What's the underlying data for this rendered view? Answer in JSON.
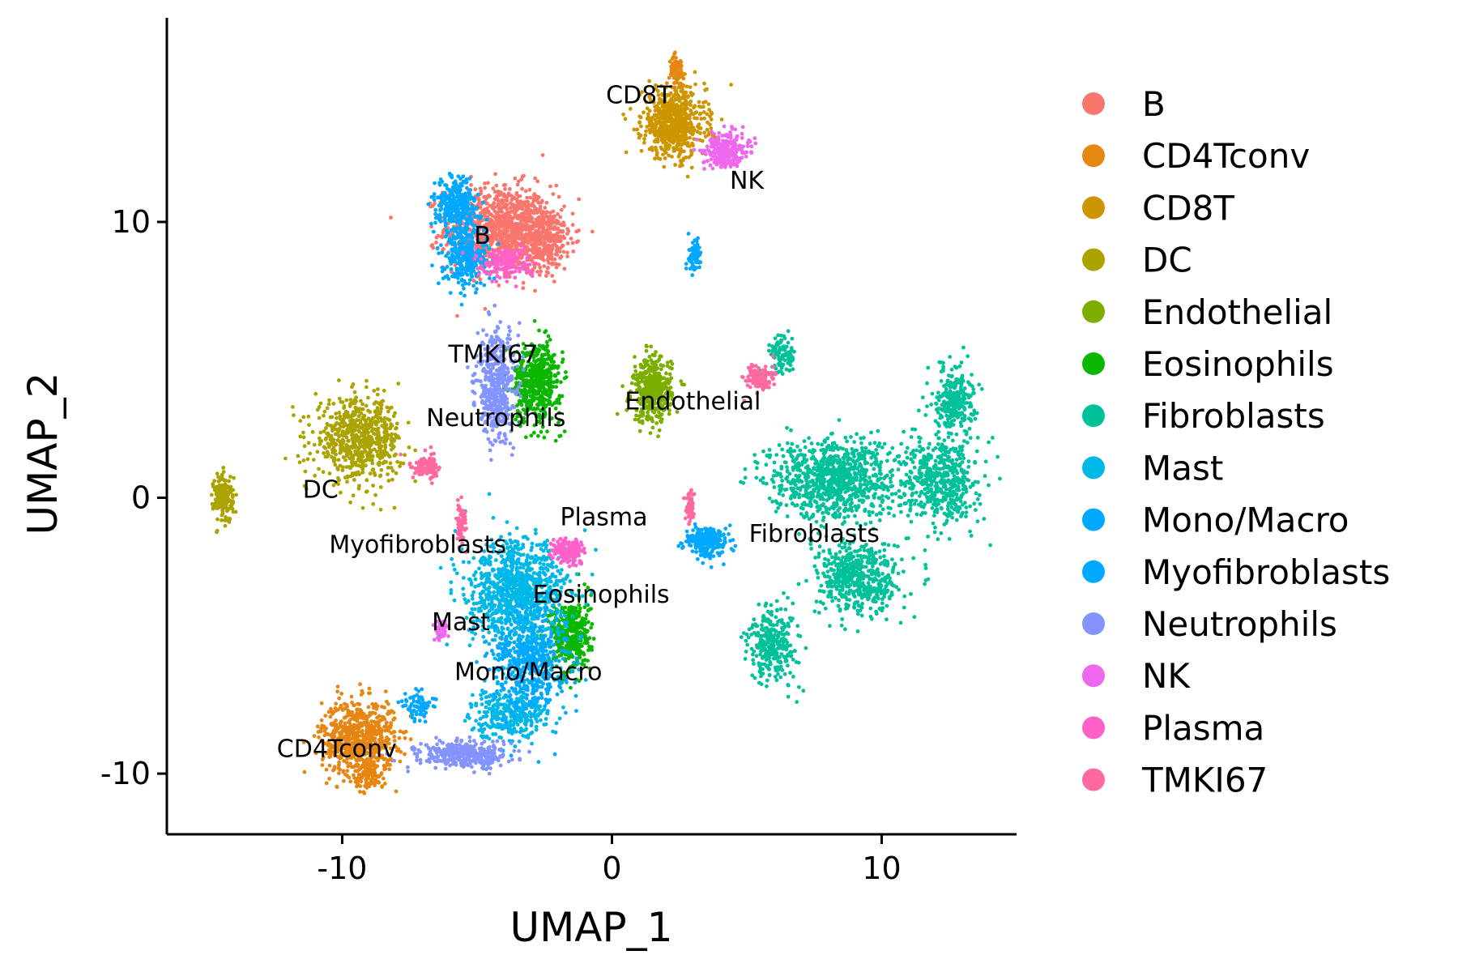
{
  "chart_data": {
    "type": "scatter",
    "title": "",
    "xlabel": "UMAP_1",
    "ylabel": "UMAP_2",
    "xlim": [
      -16.5,
      15
    ],
    "ylim": [
      -12.2,
      17.4
    ],
    "xticks": [
      -10,
      0,
      10
    ],
    "yticks": [
      -10,
      0,
      10
    ],
    "xtick_labels": [
      "-10",
      "0",
      "10"
    ],
    "ytick_labels": [
      "-10",
      "0",
      "10"
    ],
    "grid": false,
    "legend_position": "right",
    "series": [
      {
        "name": "B",
        "color": "#F8766D",
        "label": "B",
        "label_xy": [
          -4.8,
          9.2
        ],
        "blobs": [
          [
            -4.2,
            9.8,
            2.2,
            1.7,
            900
          ],
          [
            -2.6,
            9.4,
            1.3,
            1.3,
            400
          ]
        ]
      },
      {
        "name": "CD4Tconv",
        "color": "#E68613",
        "label": "CD4Tconv",
        "label_xy": [
          -10.2,
          -9.4
        ],
        "blobs": [
          [
            -9.4,
            -8.7,
            1.5,
            1.5,
            700
          ],
          [
            -9.0,
            -10.0,
            0.6,
            0.6,
            100
          ],
          [
            2.4,
            15.5,
            0.3,
            0.6,
            70
          ]
        ]
      },
      {
        "name": "CD8T",
        "color": "#CD9600",
        "label": "CD8T",
        "label_xy": [
          1.0,
          14.3
        ],
        "blobs": [
          [
            2.3,
            13.6,
            1.3,
            1.4,
            650
          ]
        ]
      },
      {
        "name": "DC",
        "color": "#ABA300",
        "label": "DC",
        "label_xy": [
          -10.8,
          0.0
        ],
        "blobs": [
          [
            -9.4,
            2.1,
            1.8,
            1.6,
            650
          ],
          [
            -14.4,
            0.0,
            0.4,
            1.0,
            180
          ]
        ]
      },
      {
        "name": "Endothelial",
        "color": "#7CAE00",
        "label": "Endothelial",
        "label_xy": [
          3.0,
          3.2
        ],
        "blobs": [
          [
            1.5,
            3.9,
            0.8,
            1.3,
            420
          ]
        ]
      },
      {
        "name": "Eosinophils",
        "color": "#0CB702",
        "label": "Eosinophils",
        "label_xy": [
          -0.4,
          -3.8
        ],
        "blobs": [
          [
            -2.8,
            4.2,
            1.0,
            1.6,
            520
          ],
          [
            -1.5,
            -5.0,
            0.8,
            1.5,
            400
          ]
        ]
      },
      {
        "name": "Fibroblasts",
        "color": "#00C19A",
        "label": "Fibroblasts",
        "label_xy": [
          7.5,
          -1.6
        ],
        "blobs": [
          [
            8.2,
            0.7,
            2.6,
            1.6,
            900
          ],
          [
            9.2,
            -2.9,
            1.7,
            1.5,
            520
          ],
          [
            12.2,
            0.6,
            1.5,
            1.8,
            500
          ],
          [
            12.7,
            3.6,
            0.8,
            1.3,
            260
          ],
          [
            6.0,
            -5.3,
            1.0,
            1.5,
            300
          ],
          [
            6.3,
            5.2,
            0.6,
            0.8,
            100
          ]
        ]
      },
      {
        "name": "Mast",
        "color": "#00B8E7",
        "label": "Mast",
        "label_xy": [
          -5.6,
          -4.8
        ],
        "blobs": [
          [
            -3.5,
            -3.5,
            2.0,
            2.1,
            1000
          ],
          [
            -3.8,
            -7.8,
            1.6,
            1.0,
            320
          ]
        ]
      },
      {
        "name": "Mono/Macro",
        "color": "#00A9FF",
        "label": "Mono/Macro",
        "label_xy": [
          -3.1,
          -6.6
        ],
        "blobs": [
          [
            -5.8,
            10.6,
            0.8,
            1.1,
            320
          ],
          [
            -5.4,
            8.8,
            0.9,
            1.3,
            320
          ],
          [
            -3.0,
            -6.0,
            1.5,
            2.0,
            500
          ],
          [
            -7.2,
            -7.5,
            0.6,
            0.6,
            80
          ]
        ]
      },
      {
        "name": "Myofibroblasts",
        "color": "#00A9FF",
        "label": "Myofibroblasts",
        "label_xy": [
          -7.2,
          -2.0
        ],
        "blobs": [
          [
            3.5,
            -1.6,
            0.9,
            0.6,
            220
          ],
          [
            3.1,
            8.8,
            0.3,
            0.6,
            70
          ]
        ]
      },
      {
        "name": "Neutrophils",
        "color": "#8494FF",
        "label": "Neutrophils",
        "label_xy": [
          -4.3,
          2.6
        ],
        "blobs": [
          [
            -4.3,
            4.0,
            0.8,
            2.2,
            450
          ],
          [
            -5.5,
            -9.3,
            1.8,
            0.5,
            380
          ]
        ]
      },
      {
        "name": "NK",
        "color": "#ED68ED",
        "label": "NK",
        "label_xy": [
          5.0,
          11.2
        ],
        "blobs": [
          [
            4.2,
            12.6,
            0.9,
            0.7,
            280
          ],
          [
            -6.3,
            -4.8,
            0.3,
            0.4,
            40
          ]
        ]
      },
      {
        "name": "Plasma",
        "color": "#FF61C9",
        "label": "Plasma",
        "label_xy": [
          -0.3,
          -1.0
        ],
        "blobs": [
          [
            -1.6,
            -1.9,
            0.6,
            0.5,
            180
          ],
          [
            -3.9,
            8.5,
            1.0,
            0.6,
            180
          ]
        ]
      },
      {
        "name": "TMKI67",
        "color": "#FF68A1",
        "label": "TMKI67",
        "label_xy": [
          -4.4,
          4.9
        ],
        "blobs": [
          [
            -6.9,
            1.1,
            0.6,
            0.5,
            120
          ],
          [
            -5.6,
            -0.9,
            0.2,
            0.9,
            60
          ],
          [
            5.4,
            4.3,
            0.6,
            0.6,
            120
          ],
          [
            2.9,
            -0.4,
            0.2,
            0.6,
            50
          ]
        ]
      }
    ]
  }
}
